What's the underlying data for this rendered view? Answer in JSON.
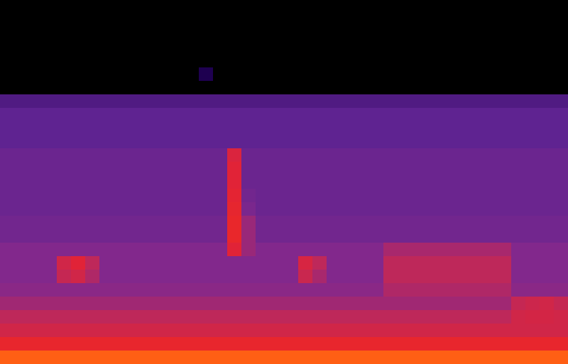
{
  "chart_data": {
    "type": "heatmap",
    "tick_labels": false,
    "cells": [
      [
        0,
        0,
        0,
        0,
        0,
        0,
        0,
        0,
        0,
        0,
        0,
        0,
        0,
        0,
        0,
        0,
        0,
        0,
        0,
        0,
        0,
        0,
        0,
        0,
        0,
        0,
        0,
        0,
        0,
        0,
        0,
        0,
        0,
        0,
        0,
        0,
        0,
        0,
        0,
        0
      ],
      [
        0,
        0,
        0,
        0,
        0,
        0,
        0,
        0,
        0,
        0,
        0,
        0,
        0,
        0,
        0,
        0,
        0,
        0,
        0,
        0,
        0,
        0,
        0,
        0,
        0,
        0,
        0,
        0,
        0,
        0,
        0,
        0,
        0,
        0,
        0,
        0,
        0,
        0,
        0,
        0
      ],
      [
        0,
        0,
        0,
        0,
        0,
        0,
        0,
        0,
        0,
        0,
        0,
        0,
        0,
        0,
        0,
        0,
        0,
        0,
        0,
        0,
        0,
        0,
        0,
        0,
        0,
        0,
        0,
        0,
        0,
        0,
        0,
        0,
        0,
        0,
        0,
        0,
        0,
        0,
        0,
        0
      ],
      [
        0,
        0,
        0,
        0,
        0,
        0,
        0,
        0,
        0,
        0,
        0,
        0,
        0,
        0,
        0,
        0,
        0,
        0,
        0,
        0,
        0,
        0,
        0,
        0,
        0,
        0,
        0,
        0,
        0,
        0,
        0,
        0,
        0,
        0,
        0,
        0,
        0,
        0,
        0,
        0
      ],
      [
        0,
        0,
        0,
        0,
        0,
        0,
        0,
        0,
        0,
        0,
        0,
        0,
        0,
        0,
        0,
        0,
        0,
        0,
        0,
        0,
        0,
        0,
        0,
        0,
        0,
        0,
        0,
        0,
        0,
        0,
        0,
        0,
        0,
        0,
        0,
        0,
        0,
        0,
        0,
        0
      ],
      [
        0,
        0,
        0,
        0,
        0,
        0,
        0,
        0,
        0,
        0,
        0,
        0,
        0,
        0,
        0.2,
        0,
        0,
        0,
        0,
        0,
        0,
        0,
        0,
        0,
        0,
        0,
        0,
        0,
        0,
        0,
        0,
        0,
        0,
        0,
        0,
        0,
        0,
        0,
        0,
        0
      ],
      [
        0,
        0,
        0,
        0,
        0,
        0,
        0,
        0,
        0,
        0,
        0,
        0,
        0,
        0,
        0,
        0,
        0,
        0,
        0,
        0,
        0,
        0,
        0,
        0,
        0,
        0,
        0,
        0,
        0,
        0,
        0,
        0,
        0,
        0,
        0,
        0,
        0,
        0,
        0,
        0
      ],
      [
        0.3,
        0.3,
        0.3,
        0.3,
        0.3,
        0.3,
        0.3,
        0.3,
        0.3,
        0.3,
        0.3,
        0.3,
        0.3,
        0.3,
        0.3,
        0.3,
        0.3,
        0.3,
        0.3,
        0.3,
        0.3,
        0.3,
        0.3,
        0.3,
        0.3,
        0.3,
        0.3,
        0.3,
        0.3,
        0.3,
        0.3,
        0.3,
        0.3,
        0.3,
        0.3,
        0.3,
        0.3,
        0.3,
        0.3,
        0.3
      ],
      [
        0.33,
        0.33,
        0.33,
        0.33,
        0.33,
        0.33,
        0.33,
        0.33,
        0.33,
        0.33,
        0.33,
        0.33,
        0.33,
        0.33,
        0.33,
        0.33,
        0.33,
        0.33,
        0.33,
        0.33,
        0.33,
        0.33,
        0.33,
        0.33,
        0.33,
        0.33,
        0.33,
        0.33,
        0.33,
        0.33,
        0.33,
        0.33,
        0.33,
        0.33,
        0.33,
        0.33,
        0.33,
        0.33,
        0.33,
        0.33
      ],
      [
        0.33,
        0.33,
        0.33,
        0.33,
        0.33,
        0.33,
        0.33,
        0.33,
        0.33,
        0.33,
        0.33,
        0.33,
        0.33,
        0.33,
        0.33,
        0.33,
        0.33,
        0.33,
        0.33,
        0.33,
        0.33,
        0.33,
        0.33,
        0.33,
        0.33,
        0.33,
        0.33,
        0.33,
        0.33,
        0.33,
        0.33,
        0.33,
        0.33,
        0.33,
        0.33,
        0.33,
        0.33,
        0.33,
        0.33,
        0.33
      ],
      [
        0.33,
        0.33,
        0.33,
        0.33,
        0.33,
        0.33,
        0.33,
        0.33,
        0.33,
        0.33,
        0.33,
        0.33,
        0.33,
        0.33,
        0.33,
        0.33,
        0.33,
        0.33,
        0.33,
        0.33,
        0.33,
        0.33,
        0.33,
        0.33,
        0.33,
        0.33,
        0.33,
        0.33,
        0.33,
        0.33,
        0.33,
        0.33,
        0.33,
        0.33,
        0.33,
        0.33,
        0.33,
        0.33,
        0.33,
        0.33
      ],
      [
        0.36,
        0.36,
        0.36,
        0.36,
        0.36,
        0.36,
        0.36,
        0.36,
        0.36,
        0.36,
        0.36,
        0.36,
        0.36,
        0.36,
        0.36,
        0.36,
        0.58,
        0.36,
        0.36,
        0.36,
        0.36,
        0.36,
        0.36,
        0.36,
        0.36,
        0.36,
        0.36,
        0.36,
        0.36,
        0.36,
        0.36,
        0.36,
        0.36,
        0.36,
        0.36,
        0.36,
        0.36,
        0.36,
        0.36,
        0.36
      ],
      [
        0.36,
        0.36,
        0.36,
        0.36,
        0.36,
        0.36,
        0.36,
        0.36,
        0.36,
        0.36,
        0.36,
        0.36,
        0.36,
        0.36,
        0.36,
        0.36,
        0.6,
        0.36,
        0.36,
        0.36,
        0.36,
        0.36,
        0.36,
        0.36,
        0.36,
        0.36,
        0.36,
        0.36,
        0.36,
        0.36,
        0.36,
        0.36,
        0.36,
        0.36,
        0.36,
        0.36,
        0.36,
        0.36,
        0.36,
        0.36
      ],
      [
        0.36,
        0.36,
        0.36,
        0.36,
        0.36,
        0.36,
        0.36,
        0.36,
        0.36,
        0.36,
        0.36,
        0.36,
        0.36,
        0.36,
        0.36,
        0.36,
        0.6,
        0.36,
        0.36,
        0.36,
        0.36,
        0.36,
        0.36,
        0.36,
        0.36,
        0.36,
        0.36,
        0.36,
        0.36,
        0.36,
        0.36,
        0.36,
        0.36,
        0.36,
        0.36,
        0.36,
        0.36,
        0.36,
        0.36,
        0.36
      ],
      [
        0.36,
        0.36,
        0.36,
        0.36,
        0.36,
        0.36,
        0.36,
        0.36,
        0.36,
        0.36,
        0.36,
        0.36,
        0.36,
        0.36,
        0.36,
        0.36,
        0.62,
        0.38,
        0.36,
        0.36,
        0.36,
        0.36,
        0.36,
        0.36,
        0.36,
        0.36,
        0.36,
        0.36,
        0.36,
        0.36,
        0.36,
        0.36,
        0.36,
        0.36,
        0.36,
        0.36,
        0.36,
        0.36,
        0.36,
        0.36
      ],
      [
        0.36,
        0.36,
        0.36,
        0.36,
        0.36,
        0.36,
        0.36,
        0.36,
        0.36,
        0.36,
        0.36,
        0.36,
        0.36,
        0.36,
        0.36,
        0.36,
        0.64,
        0.4,
        0.36,
        0.36,
        0.36,
        0.36,
        0.36,
        0.36,
        0.36,
        0.36,
        0.36,
        0.36,
        0.36,
        0.36,
        0.36,
        0.36,
        0.36,
        0.36,
        0.36,
        0.36,
        0.36,
        0.36,
        0.36,
        0.36
      ],
      [
        0.38,
        0.38,
        0.38,
        0.38,
        0.38,
        0.38,
        0.38,
        0.38,
        0.38,
        0.38,
        0.38,
        0.38,
        0.38,
        0.38,
        0.38,
        0.38,
        0.66,
        0.45,
        0.38,
        0.38,
        0.38,
        0.38,
        0.38,
        0.38,
        0.38,
        0.38,
        0.38,
        0.38,
        0.38,
        0.38,
        0.38,
        0.38,
        0.38,
        0.38,
        0.38,
        0.38,
        0.38,
        0.38,
        0.38,
        0.38
      ],
      [
        0.38,
        0.38,
        0.38,
        0.38,
        0.38,
        0.38,
        0.38,
        0.38,
        0.38,
        0.38,
        0.38,
        0.38,
        0.38,
        0.38,
        0.38,
        0.38,
        0.66,
        0.45,
        0.38,
        0.38,
        0.38,
        0.38,
        0.38,
        0.38,
        0.38,
        0.38,
        0.38,
        0.38,
        0.38,
        0.38,
        0.38,
        0.38,
        0.38,
        0.38,
        0.38,
        0.38,
        0.38,
        0.38,
        0.38,
        0.38
      ],
      [
        0.42,
        0.42,
        0.42,
        0.42,
        0.42,
        0.42,
        0.42,
        0.42,
        0.42,
        0.42,
        0.42,
        0.42,
        0.42,
        0.42,
        0.42,
        0.42,
        0.6,
        0.45,
        0.42,
        0.42,
        0.42,
        0.42,
        0.42,
        0.42,
        0.42,
        0.42,
        0.42,
        0.47,
        0.47,
        0.47,
        0.47,
        0.47,
        0.47,
        0.47,
        0.47,
        0.47,
        0.42,
        0.42,
        0.42,
        0.42
      ],
      [
        0.42,
        0.42,
        0.42,
        0.42,
        0.55,
        0.6,
        0.5,
        0.42,
        0.42,
        0.42,
        0.42,
        0.42,
        0.42,
        0.42,
        0.42,
        0.42,
        0.42,
        0.42,
        0.42,
        0.42,
        0.42,
        0.57,
        0.5,
        0.42,
        0.42,
        0.42,
        0.42,
        0.5,
        0.5,
        0.5,
        0.5,
        0.5,
        0.5,
        0.5,
        0.5,
        0.5,
        0.42,
        0.42,
        0.42,
        0.42
      ],
      [
        0.42,
        0.42,
        0.42,
        0.42,
        0.52,
        0.55,
        0.48,
        0.42,
        0.42,
        0.42,
        0.42,
        0.42,
        0.42,
        0.42,
        0.42,
        0.42,
        0.42,
        0.42,
        0.42,
        0.42,
        0.42,
        0.53,
        0.47,
        0.42,
        0.42,
        0.42,
        0.42,
        0.5,
        0.5,
        0.5,
        0.5,
        0.5,
        0.5,
        0.5,
        0.5,
        0.5,
        0.42,
        0.42,
        0.42,
        0.42
      ],
      [
        0.43,
        0.43,
        0.43,
        0.43,
        0.43,
        0.43,
        0.43,
        0.43,
        0.43,
        0.43,
        0.43,
        0.43,
        0.43,
        0.43,
        0.43,
        0.43,
        0.43,
        0.43,
        0.43,
        0.43,
        0.43,
        0.43,
        0.43,
        0.43,
        0.43,
        0.43,
        0.43,
        0.48,
        0.48,
        0.48,
        0.48,
        0.48,
        0.48,
        0.48,
        0.48,
        0.48,
        0.43,
        0.43,
        0.43,
        0.43
      ],
      [
        0.46,
        0.46,
        0.46,
        0.46,
        0.46,
        0.46,
        0.46,
        0.46,
        0.46,
        0.46,
        0.46,
        0.46,
        0.46,
        0.46,
        0.46,
        0.46,
        0.46,
        0.46,
        0.46,
        0.46,
        0.46,
        0.46,
        0.46,
        0.46,
        0.46,
        0.46,
        0.46,
        0.46,
        0.46,
        0.46,
        0.46,
        0.46,
        0.46,
        0.46,
        0.46,
        0.46,
        0.52,
        0.54,
        0.55,
        0.52
      ],
      [
        0.5,
        0.5,
        0.5,
        0.5,
        0.5,
        0.5,
        0.5,
        0.5,
        0.5,
        0.5,
        0.5,
        0.5,
        0.5,
        0.5,
        0.5,
        0.5,
        0.5,
        0.5,
        0.5,
        0.5,
        0.5,
        0.5,
        0.5,
        0.5,
        0.5,
        0.5,
        0.5,
        0.5,
        0.5,
        0.5,
        0.5,
        0.5,
        0.5,
        0.5,
        0.5,
        0.5,
        0.55,
        0.56,
        0.56,
        0.55
      ],
      [
        0.55,
        0.55,
        0.55,
        0.55,
        0.55,
        0.55,
        0.55,
        0.55,
        0.55,
        0.55,
        0.55,
        0.55,
        0.55,
        0.55,
        0.55,
        0.55,
        0.55,
        0.55,
        0.55,
        0.55,
        0.55,
        0.55,
        0.55,
        0.55,
        0.55,
        0.55,
        0.55,
        0.55,
        0.55,
        0.55,
        0.55,
        0.55,
        0.55,
        0.55,
        0.55,
        0.55,
        0.55,
        0.55,
        0.55,
        0.55
      ],
      [
        0.65,
        0.65,
        0.65,
        0.65,
        0.65,
        0.65,
        0.65,
        0.65,
        0.65,
        0.65,
        0.65,
        0.65,
        0.65,
        0.65,
        0.65,
        0.65,
        0.65,
        0.65,
        0.65,
        0.65,
        0.65,
        0.65,
        0.65,
        0.65,
        0.65,
        0.65,
        0.65,
        0.65,
        0.65,
        0.65,
        0.65,
        0.65,
        0.65,
        0.65,
        0.65,
        0.65,
        0.65,
        0.65,
        0.65,
        0.65
      ],
      [
        0.88,
        0.88,
        0.88,
        0.88,
        0.88,
        0.88,
        0.88,
        0.88,
        0.88,
        0.88,
        0.88,
        0.88,
        0.88,
        0.88,
        0.88,
        0.88,
        0.88,
        0.88,
        0.88,
        0.88,
        0.88,
        0.88,
        0.88,
        0.88,
        0.88,
        0.88,
        0.88,
        0.88,
        0.88,
        0.88,
        0.88,
        0.88,
        0.88,
        0.88,
        0.88,
        0.88,
        0.88,
        0.88,
        0.88,
        0.88
      ]
    ]
  }
}
